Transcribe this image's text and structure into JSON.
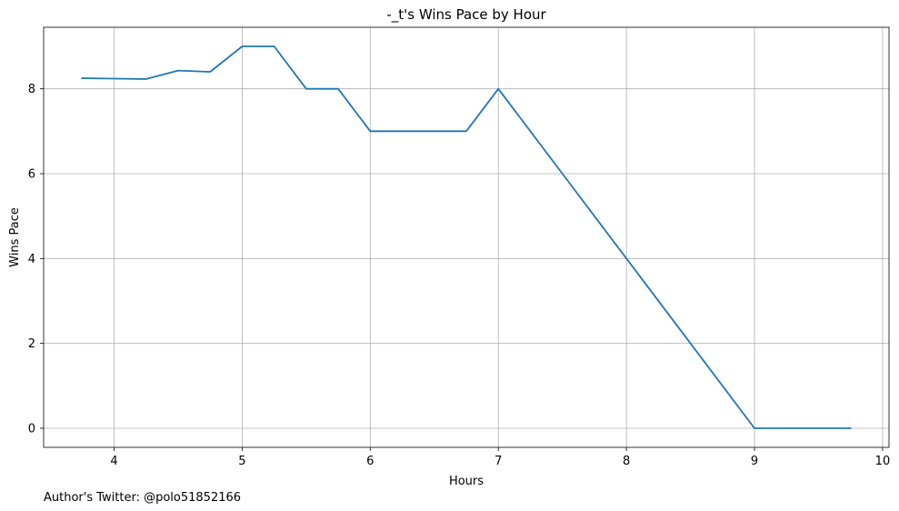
{
  "chart_data": {
    "type": "line",
    "title": "-_t's Wins Pace by Hour",
    "xlabel": "Hours",
    "ylabel": "Wins Pace",
    "xlim": [
      3.45,
      10.05
    ],
    "ylim": [
      -0.45,
      9.45
    ],
    "xticks": [
      4,
      5,
      6,
      7,
      8,
      9,
      10
    ],
    "yticks": [
      0,
      2,
      4,
      6,
      8
    ],
    "grid": true,
    "line_color": "#1f77b4",
    "series": [
      {
        "x": [
          3.75,
          4.0,
          4.25,
          4.5,
          4.75,
          5.0,
          5.25,
          5.5,
          5.75,
          6.0,
          6.25,
          6.5,
          6.75,
          7.0,
          8.0,
          9.0,
          9.25,
          9.5,
          9.75
        ],
        "values": [
          8.25,
          8.24,
          8.23,
          8.43,
          8.4,
          9.0,
          9.0,
          8.0,
          8.0,
          7.0,
          7.0,
          7.0,
          7.0,
          8.0,
          4.0,
          0.0,
          0.0,
          0.0,
          0.0
        ]
      }
    ]
  },
  "footer": {
    "note": "Author's Twitter: @polo51852166"
  }
}
